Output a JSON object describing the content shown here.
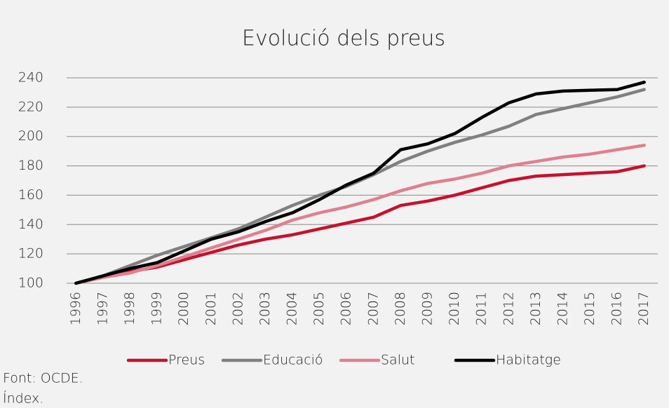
{
  "chart_data": {
    "type": "line",
    "title": "Evolució dels preus",
    "categories": [
      "1996",
      "1997",
      "1998",
      "1999",
      "2000",
      "2001",
      "2002",
      "2003",
      "2004",
      "2005",
      "2006",
      "2007",
      "2008",
      "2009",
      "2010",
      "2011",
      "2012",
      "2013",
      "2014",
      "2015",
      "2016",
      "2017"
    ],
    "series": [
      {
        "name": "Preus",
        "color": "#c8102e",
        "values": [
          100,
          104,
          108,
          111,
          116,
          121,
          126,
          130,
          133,
          137,
          141,
          145,
          153,
          156,
          160,
          165,
          170,
          173,
          174,
          175,
          176,
          180
        ]
      },
      {
        "name": "Educació",
        "color": "#808080",
        "values": [
          100,
          105,
          112,
          119,
          125,
          131,
          137,
          145,
          153,
          160,
          166,
          174,
          183,
          190,
          196,
          201,
          207,
          215,
          219,
          223,
          227,
          232
        ]
      },
      {
        "name": "Salut",
        "color": "#e0808f",
        "values": [
          100,
          104,
          107,
          112,
          118,
          124,
          130,
          136,
          143,
          148,
          152,
          157,
          163,
          168,
          171,
          175,
          180,
          183,
          186,
          188,
          191,
          194
        ]
      },
      {
        "name": "Habitatge",
        "color": "#000000",
        "values": [
          100,
          105,
          110,
          114,
          122,
          130,
          135,
          142,
          148,
          157,
          167,
          175,
          191,
          195,
          202,
          213,
          223,
          229,
          231,
          231.5,
          232,
          237
        ]
      }
    ],
    "ylim": [
      100,
      240
    ],
    "yticks": [
      100,
      120,
      140,
      160,
      180,
      200,
      220,
      240
    ],
    "grid": true,
    "legend": "bottom",
    "notes": [
      "Font: OCDE.",
      "Índex."
    ]
  }
}
